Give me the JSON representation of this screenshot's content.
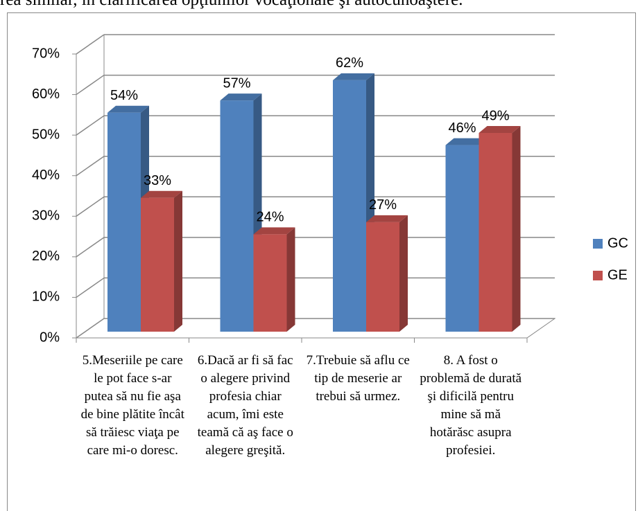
{
  "caption": "rea similar, în clarificarea opţiunilor vocaţionale şi autocunoaştere.",
  "chart_data": {
    "type": "bar3d",
    "categories": [
      "5.Meseriile pe care le pot face s-ar putea să nu fie aşa de bine plătite încât să trăiesc viaţa pe care mi-o doresc.",
      "6.Dacă ar fi să fac o alegere privind profesia chiar acum, îmi este teamă că aş face o alegere greşită.",
      "7.Trebuie să aflu ce tip de meserie ar trebui să urmez.",
      "8. A fost o problemă de durată şi dificilă pentru mine să mă hotărăsc asupra profesiei."
    ],
    "series": [
      {
        "name": "GC",
        "color": "#4f81bd",
        "values": [
          54,
          57,
          62,
          46
        ],
        "value_labels": [
          "54%",
          "57%",
          "62%",
          "46%"
        ]
      },
      {
        "name": "GE",
        "color": "#c0504d",
        "values": [
          33,
          24,
          27,
          49
        ],
        "value_labels": [
          "33%",
          "24%",
          "27%",
          "49%"
        ]
      }
    ],
    "ylim": [
      0,
      70
    ],
    "yticks": [
      {
        "value": 0,
        "label": "0%"
      },
      {
        "value": 10,
        "label": "10%"
      },
      {
        "value": 20,
        "label": "20%"
      },
      {
        "value": 30,
        "label": "30%"
      },
      {
        "value": 40,
        "label": "40%"
      },
      {
        "value": 50,
        "label": "50%"
      },
      {
        "value": 60,
        "label": "60%"
      },
      {
        "value": 70,
        "label": "70%"
      }
    ],
    "grid": true,
    "legend": "right"
  }
}
